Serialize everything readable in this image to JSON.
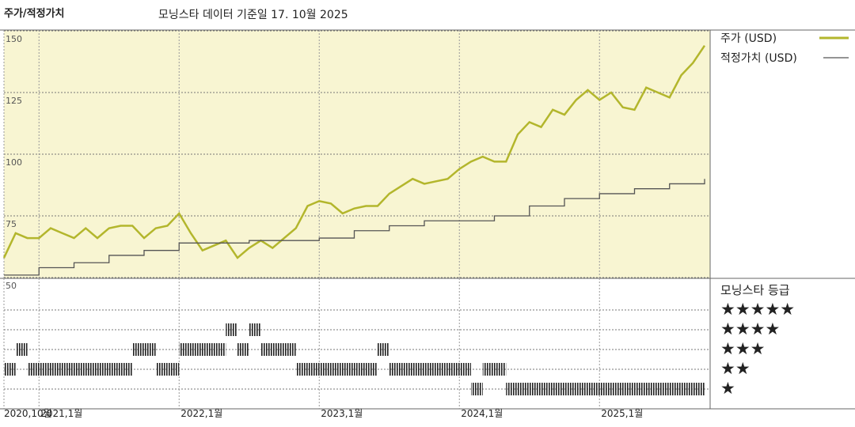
{
  "chart_data": [
    {
      "type": "line",
      "title": "주가/적정가치",
      "subtitle": "모닝스타 데이터 기준일 17. 10월 2025",
      "xlim": [
        "2020-10",
        "2025-10"
      ],
      "ylim": [
        50,
        150
      ],
      "yticks": [
        150,
        125,
        100,
        75,
        50
      ],
      "grid": true,
      "series": [
        {
          "name": "주가 (USD)",
          "color": "#b3b62c",
          "style": "line",
          "x": [
            "2020-10",
            "2020-11",
            "2020-12",
            "2021-01",
            "2021-02",
            "2021-03",
            "2021-04",
            "2021-05",
            "2021-06",
            "2021-07",
            "2021-08",
            "2021-09",
            "2021-10",
            "2021-11",
            "2021-12",
            "2022-01",
            "2022-02",
            "2022-03",
            "2022-04",
            "2022-05",
            "2022-06",
            "2022-07",
            "2022-08",
            "2022-09",
            "2022-10",
            "2022-11",
            "2022-12",
            "2023-01",
            "2023-02",
            "2023-03",
            "2023-04",
            "2023-05",
            "2023-06",
            "2023-07",
            "2023-08",
            "2023-09",
            "2023-10",
            "2023-11",
            "2023-12",
            "2024-01",
            "2024-02",
            "2024-03",
            "2024-04",
            "2024-05",
            "2024-06",
            "2024-07",
            "2024-08",
            "2024-09",
            "2024-10",
            "2024-11",
            "2024-12",
            "2025-01",
            "2025-02",
            "2025-03",
            "2025-04",
            "2025-05",
            "2025-06",
            "2025-07",
            "2025-08",
            "2025-09",
            "2025-10"
          ],
          "values": [
            58,
            68,
            66,
            66,
            70,
            68,
            66,
            70,
            66,
            70,
            71,
            71,
            66,
            70,
            71,
            76,
            68,
            61,
            63,
            65,
            58,
            62,
            65,
            62,
            66,
            70,
            79,
            81,
            80,
            76,
            78,
            79,
            79,
            84,
            87,
            90,
            88,
            89,
            90,
            94,
            97,
            99,
            97,
            97,
            108,
            113,
            111,
            118,
            116,
            122,
            126,
            122,
            125,
            119,
            118,
            127,
            125,
            123,
            132,
            137,
            144
          ]
        },
        {
          "name": "적정가치 (USD)",
          "color": "#555555",
          "style": "step",
          "x": [
            "2020-10",
            "2021-01",
            "2021-04",
            "2021-07",
            "2021-10",
            "2022-01",
            "2022-04",
            "2022-07",
            "2022-10",
            "2023-01",
            "2023-04",
            "2023-07",
            "2023-10",
            "2024-01",
            "2024-04",
            "2024-07",
            "2024-10",
            "2025-01",
            "2025-04",
            "2025-07",
            "2025-10"
          ],
          "values": [
            51,
            54,
            56,
            59,
            61,
            64,
            64,
            65,
            65,
            66,
            69,
            71,
            73,
            73,
            75,
            79,
            82,
            84,
            86,
            88,
            90
          ]
        }
      ]
    },
    {
      "type": "rating",
      "title": "모닝스타 등급",
      "xlim": [
        "2020-10",
        "2025-10"
      ],
      "xticks": [
        {
          "value": "2020-10",
          "label": "2020,10월"
        },
        {
          "value": "2021-01",
          "label": "2021,1월"
        },
        {
          "value": "2022-01",
          "label": "2022,1월"
        },
        {
          "value": "2023-01",
          "label": "2023,1월"
        },
        {
          "value": "2024-01",
          "label": "2024,1월"
        },
        {
          "value": "2025-01",
          "label": "2025,1월"
        }
      ],
      "levels": [
        {
          "value": 5,
          "label": "★★★★★"
        },
        {
          "value": 4,
          "label": "★★★★"
        },
        {
          "value": 3,
          "label": "★★★"
        },
        {
          "value": 2,
          "label": "★★"
        },
        {
          "value": 1,
          "label": "★"
        }
      ],
      "color": "#222222",
      "segments": [
        {
          "start": "2020-10",
          "end": "2020-11",
          "value": 2
        },
        {
          "start": "2020-11",
          "end": "2020-12",
          "value": 3
        },
        {
          "start": "2020-12",
          "end": "2021-09",
          "value": 2
        },
        {
          "start": "2021-09",
          "end": "2021-11",
          "value": 3
        },
        {
          "start": "2021-11",
          "end": "2022-01",
          "value": 2
        },
        {
          "start": "2022-01",
          "end": "2022-05",
          "value": 3
        },
        {
          "start": "2022-05",
          "end": "2022-06",
          "value": 4
        },
        {
          "start": "2022-06",
          "end": "2022-07",
          "value": 3
        },
        {
          "start": "2022-07",
          "end": "2022-08",
          "value": 4
        },
        {
          "start": "2022-08",
          "end": "2022-11",
          "value": 3
        },
        {
          "start": "2022-11",
          "end": "2023-06",
          "value": 2
        },
        {
          "start": "2023-06",
          "end": "2023-07",
          "value": 3
        },
        {
          "start": "2023-07",
          "end": "2024-02",
          "value": 2
        },
        {
          "start": "2024-02",
          "end": "2024-03",
          "value": 1
        },
        {
          "start": "2024-03",
          "end": "2024-05",
          "value": 2
        },
        {
          "start": "2024-05",
          "end": "2025-10",
          "value": 1
        }
      ]
    }
  ]
}
